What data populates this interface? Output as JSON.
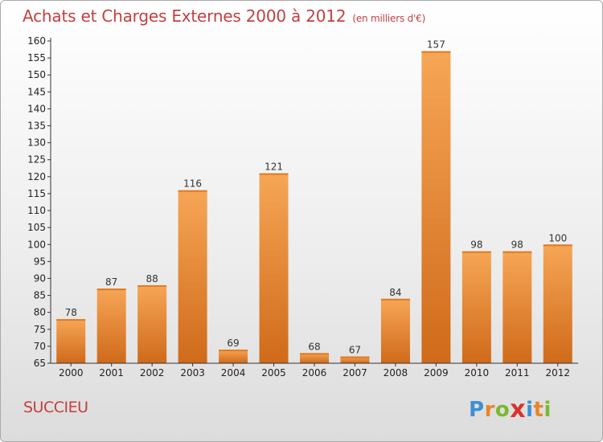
{
  "title": "Achats et Charges Externes 2000 à 2012",
  "subtitle": "(en milliers d'€)",
  "commune": "SUCCIEU",
  "logo": {
    "letters": [
      "P",
      "r",
      "o",
      "x",
      "i",
      "t",
      "i"
    ],
    "colors": [
      "#3d8fd6",
      "#e8862a",
      "#7cb82f",
      "#d9342b",
      "#3d8fd6",
      "#e8862a",
      "#7cb82f"
    ]
  },
  "colors": {
    "title": "#c43f3f",
    "bar_light": "#f6a656",
    "bar_dark": "#cf6a1a"
  },
  "chart_data": {
    "type": "bar",
    "categories": [
      "2000",
      "2001",
      "2002",
      "2003",
      "2004",
      "2005",
      "2006",
      "2007",
      "2008",
      "2009",
      "2010",
      "2011",
      "2012"
    ],
    "values": [
      78,
      87,
      88,
      116,
      69,
      121,
      68,
      67,
      84,
      157,
      98,
      98,
      100
    ],
    "ylim": [
      65,
      160
    ],
    "ytick_step": 5,
    "grid": false,
    "data_labels": true
  }
}
